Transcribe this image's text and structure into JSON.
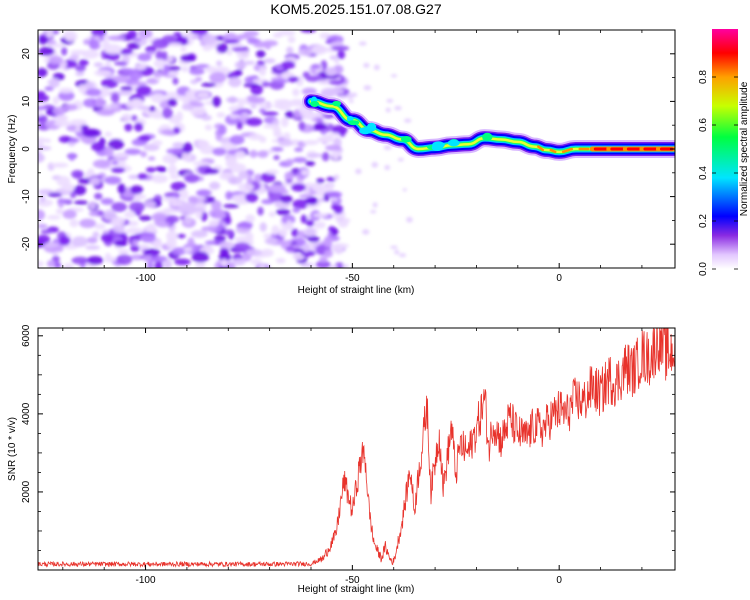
{
  "figure": {
    "title": "KOM5.2025.151.07.08.G27"
  },
  "chart_data": [
    {
      "type": "heatmap",
      "title": "KOM5.2025.151.07.08.G27",
      "xlabel": "Height of straight line (km)",
      "ylabel": "Frequency (Hz)",
      "xlim": [
        -126,
        28
      ],
      "ylim": [
        -25,
        25
      ],
      "xticks": [
        -100,
        -50,
        0
      ],
      "xtick_labels": [
        "-100",
        "-50",
        "0"
      ],
      "yticks": [
        -20,
        -10,
        0,
        10,
        20
      ],
      "ytick_labels": [
        "-20",
        "-10",
        "0",
        "10",
        "20"
      ],
      "colorbar": {
        "label": "Normalized spectral amplitude",
        "range": [
          0,
          1
        ],
        "ticks": [
          0.0,
          0.2,
          0.4,
          0.6,
          0.8
        ],
        "tick_labels": [
          "0.0",
          "0.2",
          "0.4",
          "0.6",
          "0.8"
        ],
        "colormap": [
          "#ffffff",
          "#d9b8ff",
          "#7a1ff0",
          "#0000ff",
          "#00e5ff",
          "#00ff40",
          "#c8ff00",
          "#ffa000",
          "#ff0000",
          "#ff00a0"
        ]
      },
      "noise_region_x": [
        -126,
        -55
      ],
      "ridge": {
        "x": [
          -60,
          -55,
          -50,
          -46,
          -42,
          -38,
          -34,
          -30,
          -26,
          -22,
          -18,
          -14,
          -10,
          -6,
          -3,
          0,
          4,
          8,
          12,
          16,
          20,
          24,
          28
        ],
        "freq": [
          10,
          9,
          6,
          4,
          3,
          2,
          0,
          0.3,
          0.8,
          1,
          2.3,
          2,
          1.5,
          0.5,
          -0.2,
          -0.6,
          0,
          0,
          0,
          0,
          0,
          0,
          0
        ],
        "amplitude": [
          0.3,
          0.35,
          0.3,
          0.3,
          0.28,
          0.3,
          0.35,
          0.4,
          0.45,
          0.45,
          0.45,
          0.5,
          0.5,
          0.55,
          0.6,
          0.6,
          0.7,
          0.8,
          0.85,
          0.9,
          0.9,
          0.9,
          0.9
        ]
      },
      "grid": false
    },
    {
      "type": "line",
      "xlabel": "Height of straight line (km)",
      "ylabel": "SNR (10 * v/v)",
      "xlim": [
        -126,
        28
      ],
      "ylim": [
        0,
        6200
      ],
      "xticks": [
        -100,
        -50,
        0
      ],
      "xtick_labels": [
        "-100",
        "-50",
        "0"
      ],
      "yticks": [
        2000,
        4000,
        6000
      ],
      "ytick_labels": [
        "2000",
        "4000",
        "6000"
      ],
      "series_color": "#e8332c",
      "x": [
        -126,
        -110,
        -90,
        -70,
        -60,
        -57,
        -54,
        -52,
        -50,
        -48,
        -47,
        -46,
        -45,
        -44,
        -43,
        -42,
        -41,
        -40,
        -38,
        -36,
        -35,
        -34,
        -33,
        -32,
        -31,
        -30,
        -29,
        -28,
        -27,
        -26,
        -25,
        -24,
        -22,
        -20,
        -18,
        -17,
        -16,
        -14,
        -12,
        -10,
        -8,
        -6,
        -4,
        -2,
        0,
        2,
        4,
        6,
        8,
        10,
        12,
        14,
        16,
        18,
        20,
        22,
        24,
        26,
        28
      ],
      "y": [
        150,
        150,
        150,
        150,
        160,
        300,
        900,
        2300,
        1500,
        2800,
        3000,
        1600,
        800,
        500,
        300,
        600,
        300,
        200,
        1200,
        2600,
        1500,
        2500,
        3200,
        4300,
        2000,
        2800,
        3500,
        2100,
        2900,
        3700,
        2400,
        3200,
        3000,
        3600,
        4400,
        3100,
        3800,
        3300,
        3900,
        3500,
        3400,
        3700,
        3600,
        3900,
        4100,
        4000,
        4400,
        4300,
        4700,
        4500,
        4900,
        4800,
        5200,
        5100,
        5500,
        5400,
        5900,
        5500,
        5700
      ]
    }
  ]
}
